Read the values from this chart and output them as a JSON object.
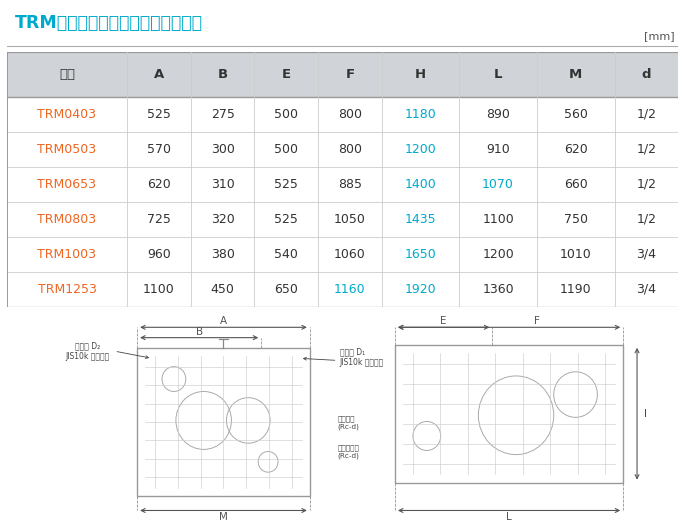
{
  "title": "TRMシリーズ《ドライ真空ポンプ》",
  "title_color": "#00aacc",
  "unit_label": "[mm]",
  "header": [
    "形式",
    "A",
    "B",
    "E",
    "F",
    "H",
    "L",
    "M",
    "d"
  ],
  "rows": [
    [
      "TRM0403",
      "525",
      "275",
      "500",
      "800",
      "1180",
      "890",
      "560",
      "1/2"
    ],
    [
      "TRM0503",
      "570",
      "300",
      "500",
      "800",
      "1200",
      "910",
      "620",
      "1/2"
    ],
    [
      "TRM0653",
      "620",
      "310",
      "525",
      "885",
      "1400",
      "1070",
      "660",
      "1/2"
    ],
    [
      "TRM0803",
      "725",
      "320",
      "525",
      "1050",
      "1435",
      "1100",
      "750",
      "1/2"
    ],
    [
      "TRM1003",
      "960",
      "380",
      "540",
      "1060",
      "1650",
      "1200",
      "1010",
      "3/4"
    ],
    [
      "TRM1253",
      "1100",
      "450",
      "650",
      "1160",
      "1920",
      "1360",
      "1190",
      "3/4"
    ]
  ],
  "model_color": "#ee6622",
  "h_color": "#00aacc",
  "f_highlight_rows": [
    5
  ],
  "l_highlight_rows": [
    2
  ],
  "header_bg": "#d0d4d8",
  "text_color": "#333333",
  "bg_color": "#ffffff",
  "col_widths": [
    1.55,
    0.82,
    0.82,
    0.82,
    0.82,
    1.0,
    1.0,
    1.0,
    0.82
  ]
}
